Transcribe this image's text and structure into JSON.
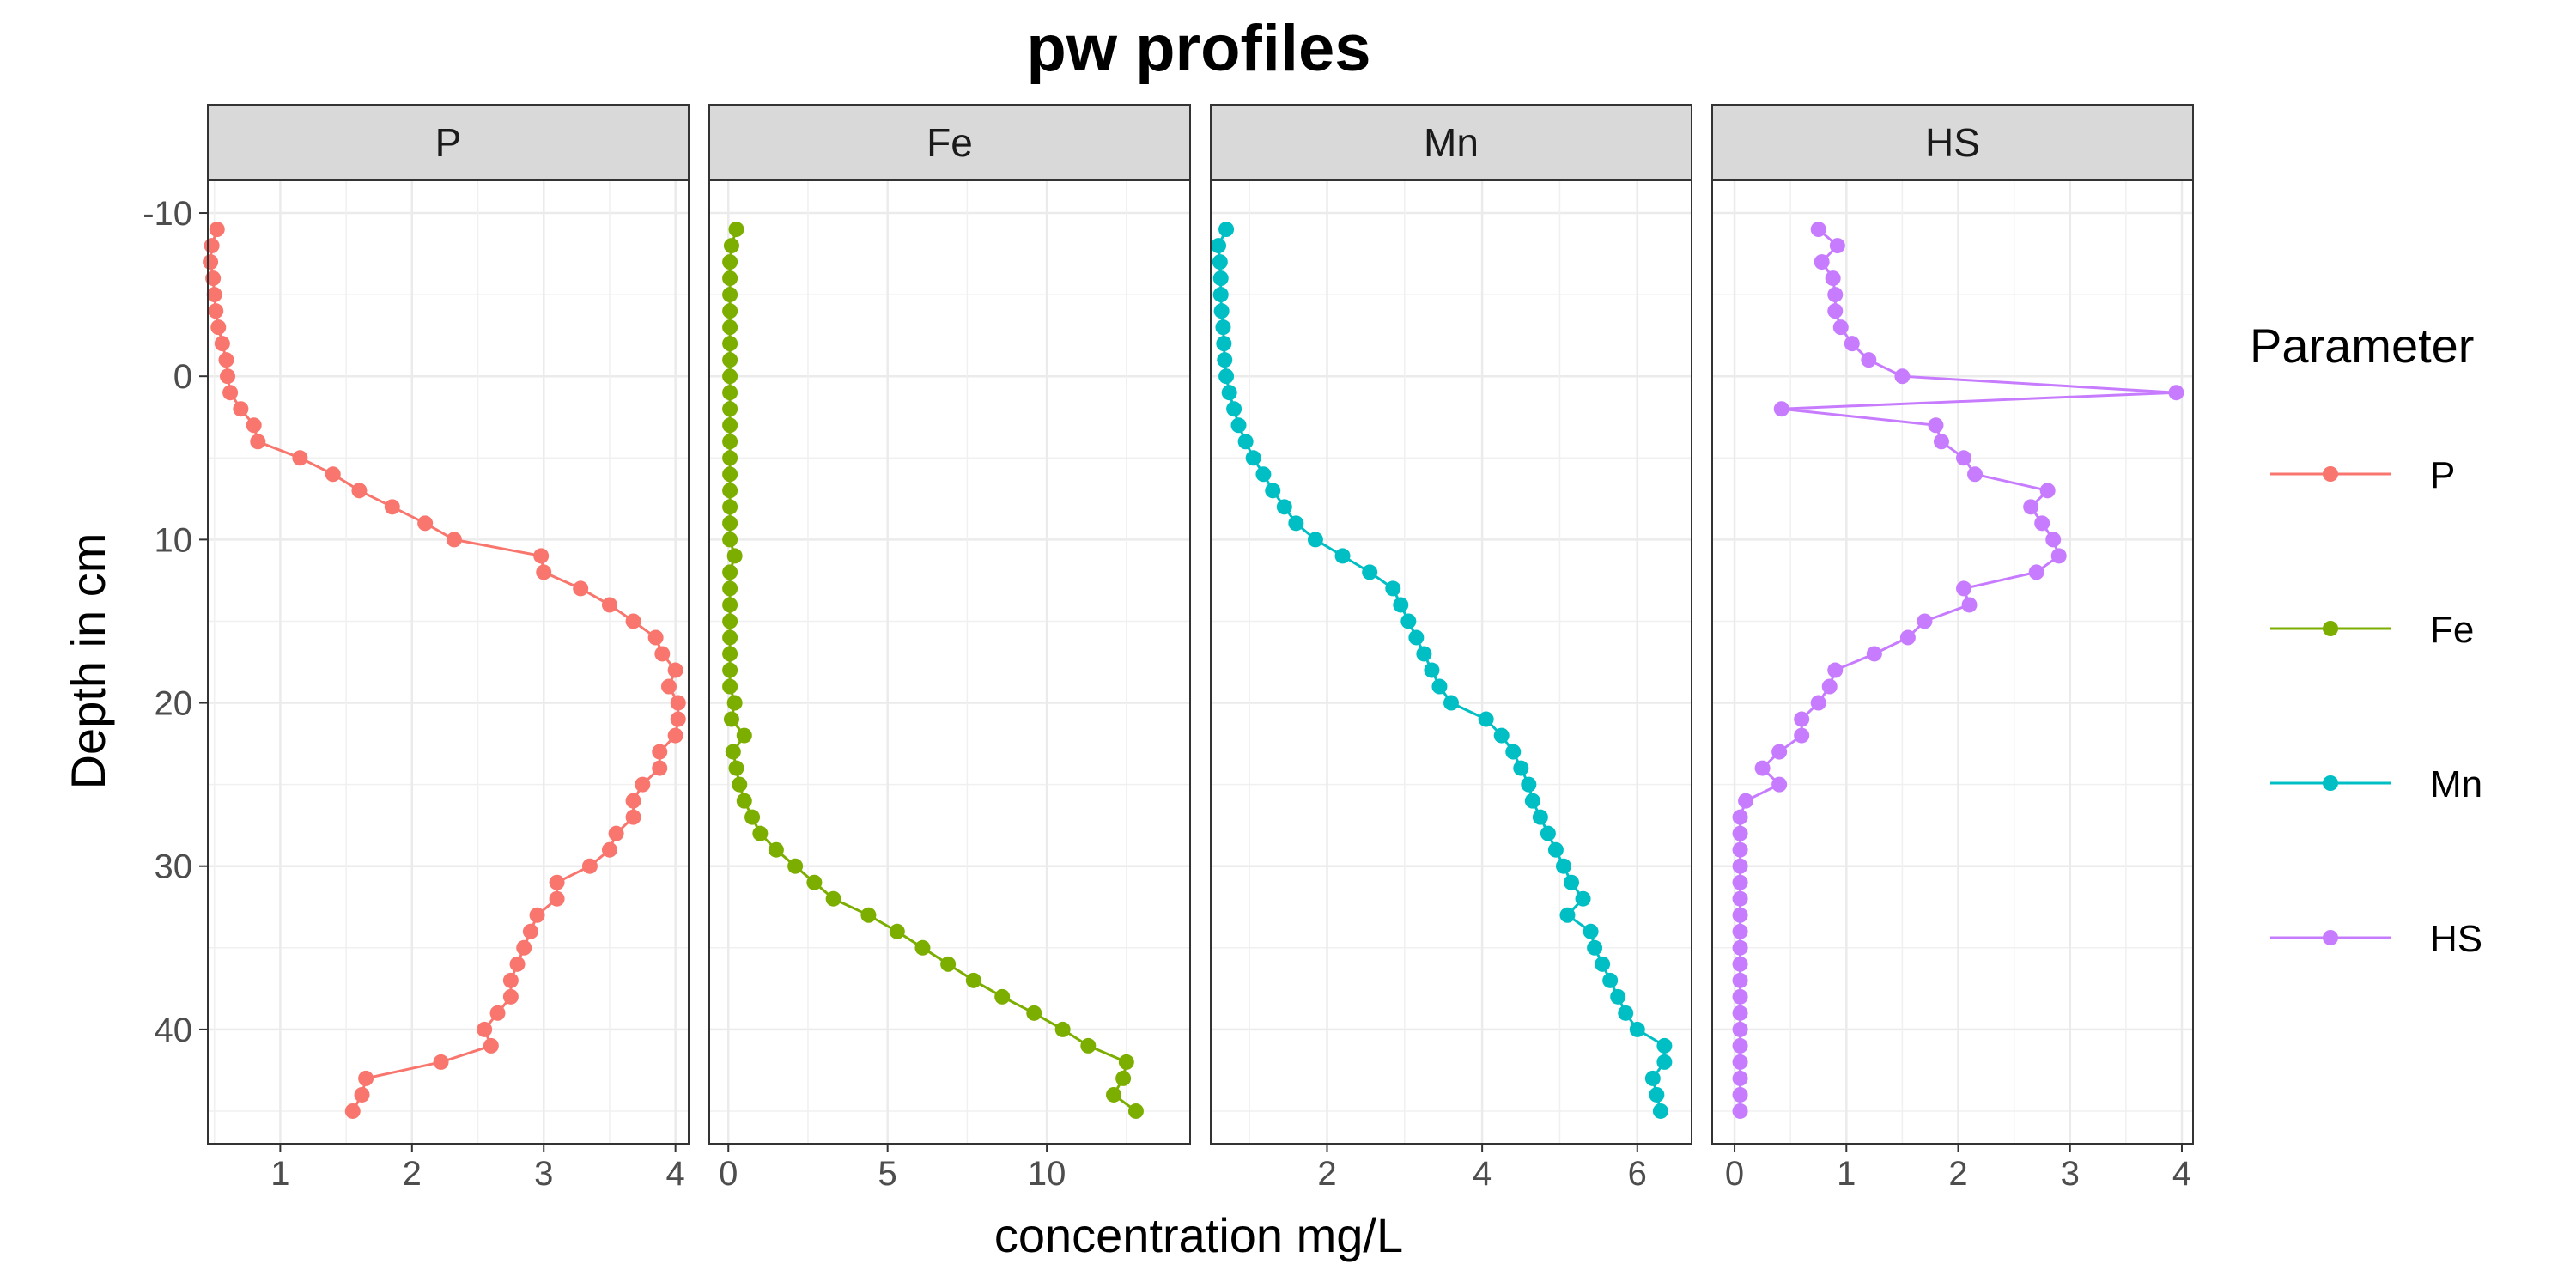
{
  "chart_data": {
    "type": "line",
    "title": "pw profiles",
    "xlabel": "concentration mg/L",
    "ylabel": "Depth in cm",
    "y_axis_reversed": true,
    "ylim": [
      -12,
      47
    ],
    "y_ticks": [
      "-10",
      "0",
      "10",
      "20",
      "30",
      "40"
    ],
    "grid": true,
    "legend": {
      "title": "Parameter",
      "placement": "right"
    },
    "depth": [
      -9,
      -8,
      -7,
      -6,
      -5,
      -4,
      -3,
      -2,
      -1,
      0,
      1,
      2,
      3,
      4,
      5,
      6,
      7,
      8,
      9,
      10,
      11,
      12,
      13,
      14,
      15,
      16,
      17,
      18,
      19,
      20,
      21,
      22,
      23,
      24,
      25,
      26,
      27,
      28,
      29,
      30,
      31,
      32,
      33,
      34,
      35,
      36,
      37,
      38,
      39,
      40,
      41,
      42,
      43,
      44,
      45
    ],
    "panels": [
      {
        "strip": "P",
        "color": "#F8766D",
        "xlim": [
          0.45,
          4.1
        ],
        "x_ticks": [
          "1",
          "2",
          "3",
          "4"
        ],
        "values": [
          0.52,
          0.48,
          0.47,
          0.49,
          0.5,
          0.51,
          0.53,
          0.56,
          0.59,
          0.6,
          0.62,
          0.7,
          0.8,
          0.83,
          1.15,
          1.4,
          1.6,
          1.85,
          2.1,
          2.32,
          2.98,
          3.0,
          3.28,
          3.5,
          3.68,
          3.85,
          3.9,
          4.0,
          3.95,
          4.02,
          4.02,
          4.0,
          3.88,
          3.88,
          3.75,
          3.68,
          3.68,
          3.55,
          3.5,
          3.35,
          3.1,
          3.1,
          2.95,
          2.9,
          2.85,
          2.8,
          2.75,
          2.75,
          2.65,
          2.55,
          2.6,
          2.22,
          1.65,
          1.62,
          1.55
        ]
      },
      {
        "strip": "Fe",
        "color": "#7CAE00",
        "xlim": [
          -0.6,
          14.5
        ],
        "x_ticks": [
          "0",
          "5",
          "10"
        ],
        "values": [
          0.25,
          0.1,
          0.05,
          0.05,
          0.05,
          0.05,
          0.05,
          0.05,
          0.05,
          0.05,
          0.05,
          0.05,
          0.05,
          0.05,
          0.05,
          0.05,
          0.05,
          0.05,
          0.05,
          0.05,
          0.2,
          0.05,
          0.05,
          0.05,
          0.05,
          0.05,
          0.05,
          0.05,
          0.05,
          0.2,
          0.1,
          0.5,
          0.15,
          0.25,
          0.35,
          0.5,
          0.75,
          1.0,
          1.5,
          2.1,
          2.7,
          3.3,
          4.4,
          5.3,
          6.1,
          6.9,
          7.7,
          8.6,
          9.6,
          10.5,
          11.3,
          12.5,
          12.4,
          12.1,
          12.8
        ]
      },
      {
        "strip": "Mn",
        "color": "#00BFC4",
        "xlim": [
          0.5,
          6.7
        ],
        "x_ticks": [
          "2",
          "4",
          "6"
        ],
        "values": [
          0.7,
          0.6,
          0.62,
          0.63,
          0.63,
          0.64,
          0.66,
          0.67,
          0.68,
          0.7,
          0.74,
          0.8,
          0.86,
          0.95,
          1.05,
          1.18,
          1.3,
          1.45,
          1.6,
          1.85,
          2.2,
          2.55,
          2.85,
          2.95,
          3.05,
          3.15,
          3.25,
          3.35,
          3.45,
          3.6,
          4.05,
          4.25,
          4.4,
          4.5,
          4.6,
          4.65,
          4.75,
          4.85,
          4.95,
          5.05,
          5.15,
          5.3,
          5.1,
          5.4,
          5.45,
          5.55,
          5.65,
          5.75,
          5.85,
          6.0,
          6.35,
          6.35,
          6.2,
          6.25,
          6.3
        ]
      },
      {
        "strip": "HS",
        "color": "#C77CFF",
        "xlim": [
          -0.2,
          4.1
        ],
        "x_ticks": [
          "0",
          "1",
          "2",
          "3",
          "4"
        ],
        "values": [
          0.75,
          0.92,
          0.78,
          0.88,
          0.9,
          0.9,
          0.95,
          1.05,
          1.2,
          1.5,
          3.95,
          0.42,
          1.8,
          1.85,
          2.05,
          2.15,
          2.8,
          2.65,
          2.75,
          2.85,
          2.9,
          2.7,
          2.05,
          2.1,
          1.7,
          1.55,
          1.25,
          0.9,
          0.85,
          0.75,
          0.6,
          0.6,
          0.4,
          0.25,
          0.4,
          0.1,
          0.05,
          0.05,
          0.05,
          0.05,
          0.05,
          0.05,
          0.05,
          0.05,
          0.05,
          0.05,
          0.05,
          0.05,
          0.05,
          0.05,
          0.05,
          0.05,
          0.05,
          0.05,
          0.05
        ]
      }
    ]
  }
}
